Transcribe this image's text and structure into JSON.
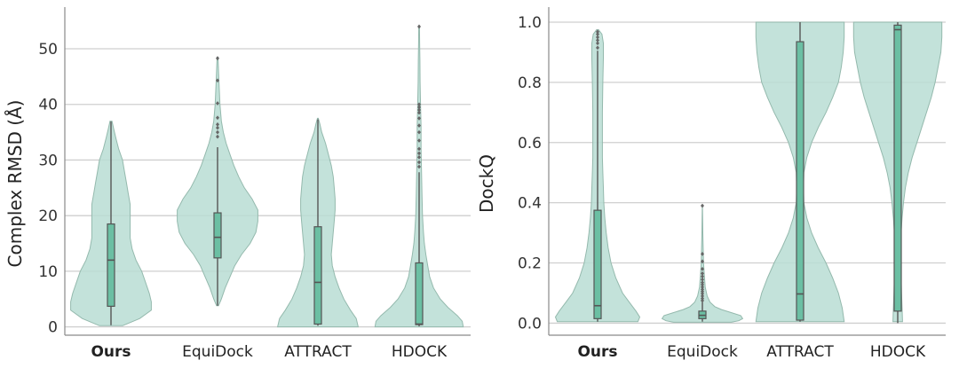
{
  "colors": {
    "violin_fill": "#b9ddd3",
    "violin_edge": "#94b9ad",
    "box_fill": "#6bbfa3",
    "box_edge": "#555555",
    "grid": "#cfcfcf"
  },
  "chart_data": [
    {
      "type": "violin",
      "ylabel": "Complex RMSD (Å)",
      "xlabel": "",
      "title": "",
      "ylim": [
        -1.5,
        57.5
      ],
      "yticks": [
        0,
        10,
        20,
        30,
        40,
        50
      ],
      "grid": true,
      "categories": [
        "Ours",
        "EquiDock",
        "ATTRACT",
        "HDOCK"
      ],
      "bold_category": "Ours",
      "violins": [
        {
          "density_y": [
            0.2,
            1.5,
            3,
            4.5,
            6,
            8,
            10,
            12,
            14,
            16,
            18,
            20,
            22,
            24,
            26,
            28,
            30,
            32,
            34,
            35.5,
            37
          ],
          "half_width": [
            0.12,
            0.3,
            0.42,
            0.42,
            0.4,
            0.36,
            0.32,
            0.26,
            0.22,
            0.2,
            0.2,
            0.2,
            0.2,
            0.18,
            0.16,
            0.14,
            0.12,
            0.08,
            0.05,
            0.03,
            0.01
          ],
          "whisker_low": 0.3,
          "q1": 3.7,
          "median": 12.0,
          "q3": 18.5,
          "whisker_high": 36.9,
          "outliers": []
        },
        {
          "density_y": [
            3.8,
            5,
            7,
            9,
            11,
            13,
            15,
            17,
            19,
            21,
            23,
            25,
            27,
            29,
            31,
            33,
            35,
            37,
            40,
            44,
            48.5
          ],
          "half_width": [
            0.01,
            0.04,
            0.08,
            0.13,
            0.18,
            0.25,
            0.34,
            0.4,
            0.42,
            0.42,
            0.36,
            0.28,
            0.22,
            0.17,
            0.13,
            0.09,
            0.06,
            0.04,
            0.025,
            0.015,
            0.005
          ],
          "whisker_low": 3.8,
          "q1": 12.4,
          "median": 16.1,
          "q3": 20.5,
          "whisker_high": 32.3,
          "outliers": [
            34.2,
            35.0,
            35.8,
            36.4,
            37.6,
            40.2,
            44.3,
            48.3
          ]
        },
        {
          "density_y": [
            0,
            1.5,
            3,
            5,
            7,
            9,
            11,
            13,
            15,
            17,
            19,
            21,
            23,
            25,
            27,
            29,
            31,
            33,
            35,
            36.5,
            37.5
          ],
          "half_width": [
            0.42,
            0.4,
            0.34,
            0.27,
            0.22,
            0.18,
            0.15,
            0.14,
            0.15,
            0.16,
            0.17,
            0.18,
            0.18,
            0.17,
            0.16,
            0.14,
            0.11,
            0.08,
            0.04,
            0.02,
            0.005
          ],
          "whisker_low": 0.2,
          "q1": 0.5,
          "median": 8.0,
          "q3": 18.0,
          "whisker_high": 37.3,
          "outliers": []
        },
        {
          "density_y": [
            0,
            1,
            2,
            3.5,
            5,
            7,
            9,
            11,
            13,
            15,
            17,
            20,
            24,
            28,
            32,
            36,
            40,
            44,
            48,
            51,
            54
          ],
          "half_width": [
            0.46,
            0.45,
            0.4,
            0.3,
            0.22,
            0.15,
            0.11,
            0.09,
            0.07,
            0.055,
            0.045,
            0.035,
            0.03,
            0.025,
            0.02,
            0.02,
            0.015,
            0.01,
            0.008,
            0.006,
            0.004
          ],
          "whisker_low": 0.1,
          "q1": 0.4,
          "median": 0.5,
          "q3": 11.5,
          "whisker_high": 27.8,
          "outliers": [
            28.8,
            29.6,
            30.5,
            31.2,
            32.0,
            33.5,
            35.0,
            36.2,
            37.5,
            38.5,
            39.0,
            39.5,
            40.0,
            54.0
          ]
        }
      ]
    },
    {
      "type": "violin",
      "ylabel": "DockQ",
      "xlabel": "",
      "title": "",
      "ylim": [
        -0.04,
        1.05
      ],
      "yticks": [
        "0.0",
        "0.2",
        "0.4",
        "0.6",
        "0.8",
        "1.0"
      ],
      "grid": true,
      "categories": [
        "Ours",
        "EquiDock",
        "ATTRACT",
        "HDOCK"
      ],
      "bold_category": "Ours",
      "violins": [
        {
          "density_y": [
            0.005,
            0.02,
            0.04,
            0.07,
            0.1,
            0.15,
            0.2,
            0.25,
            0.3,
            0.35,
            0.4,
            0.45,
            0.5,
            0.55,
            0.6,
            0.7,
            0.8,
            0.88,
            0.93,
            0.96,
            0.975
          ],
          "half_width": [
            0.42,
            0.44,
            0.4,
            0.33,
            0.26,
            0.19,
            0.14,
            0.11,
            0.09,
            0.075,
            0.065,
            0.06,
            0.055,
            0.05,
            0.05,
            0.05,
            0.055,
            0.06,
            0.06,
            0.045,
            0.01
          ],
          "whisker_low": 0.005,
          "q1": 0.015,
          "median": 0.058,
          "q3": 0.375,
          "whisker_high": 0.905,
          "outliers": [
            0.915,
            0.93,
            0.94,
            0.95,
            0.96,
            0.968
          ]
        },
        {
          "density_y": [
            0.003,
            0.008,
            0.015,
            0.025,
            0.035,
            0.045,
            0.055,
            0.07,
            0.09,
            0.12,
            0.16,
            0.2,
            0.25,
            0.3,
            0.35,
            0.39
          ],
          "half_width": [
            0.3,
            0.38,
            0.42,
            0.4,
            0.3,
            0.2,
            0.13,
            0.08,
            0.05,
            0.03,
            0.02,
            0.012,
            0.008,
            0.005,
            0.003,
            0.001
          ],
          "whisker_low": 0.005,
          "q1": 0.015,
          "median": 0.026,
          "q3": 0.04,
          "whisker_high": 0.07,
          "outliers": [
            0.075,
            0.082,
            0.09,
            0.098,
            0.105,
            0.112,
            0.12,
            0.128,
            0.135,
            0.145,
            0.155,
            0.165,
            0.18,
            0.205,
            0.23,
            0.39
          ]
        },
        {
          "density_y": [
            0.005,
            0.05,
            0.1,
            0.15,
            0.2,
            0.25,
            0.3,
            0.35,
            0.4,
            0.45,
            0.5,
            0.55,
            0.6,
            0.65,
            0.7,
            0.75,
            0.8,
            0.85,
            0.9,
            0.95,
            1.0
          ],
          "half_width": [
            0.46,
            0.44,
            0.4,
            0.34,
            0.27,
            0.19,
            0.12,
            0.07,
            0.04,
            0.035,
            0.04,
            0.07,
            0.12,
            0.19,
            0.27,
            0.34,
            0.4,
            0.43,
            0.45,
            0.46,
            0.46
          ],
          "whisker_low": 0.005,
          "q1": 0.01,
          "median": 0.097,
          "q3": 0.935,
          "whisker_high": 1.0,
          "outliers": []
        },
        {
          "density_y": [
            0.005,
            0.05,
            0.1,
            0.15,
            0.2,
            0.25,
            0.3,
            0.35,
            0.4,
            0.45,
            0.5,
            0.55,
            0.6,
            0.65,
            0.7,
            0.75,
            0.8,
            0.85,
            0.9,
            0.95,
            1.0
          ],
          "half_width": [
            0.05,
            0.045,
            0.04,
            0.035,
            0.03,
            0.03,
            0.035,
            0.045,
            0.06,
            0.08,
            0.11,
            0.15,
            0.2,
            0.25,
            0.3,
            0.35,
            0.39,
            0.42,
            0.45,
            0.46,
            0.46
          ],
          "whisker_low": 0.0,
          "q1": 0.04,
          "median": 0.975,
          "q3": 0.99,
          "whisker_high": 1.0,
          "outliers": []
        }
      ]
    }
  ]
}
